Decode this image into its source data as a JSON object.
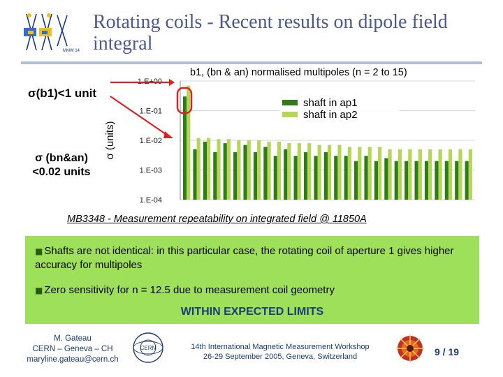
{
  "slide": {
    "title": "Rotating coils - Recent results on dipole field integral",
    "logo_text": "MMW 14",
    "sigma_b1_label": "σ(b1)<1 unit",
    "sigma_bn_line1": "σ (bn&an)",
    "sigma_bn_line2": "<0.02 units",
    "caption": "MB3348 - Measurement repeatability on integrated field @ 11850A",
    "bullets": [
      "Shafts are not identical: in this particular case, the rotating coil of aperture 1 gives higher accuracy for multipoles",
      "Zero sensitivity for n = 12.5 due to measurement coil geometry"
    ],
    "conclusion": "WITHIN EXPECTED LIMITS",
    "footer": {
      "author_name": "M. Gateau",
      "author_org": "CERN – Geneva – CH",
      "author_email": "maryline.gateau@cern.ch",
      "workshop_line1": "14th International Magnetic Measurement Workshop",
      "workshop_line2": "26-29 September 2005, Geneva, Switzerland",
      "page": "9 / 19",
      "cern_logo_text": "CERN"
    }
  },
  "colors": {
    "title": "#4a5a8c",
    "ap1": "#2e7d1a",
    "ap2": "#b6d65a",
    "highlight": "#e02020",
    "greenbox": "#9ee05a",
    "footer_text": "#1a3c7a"
  },
  "chart_data": {
    "type": "bar",
    "title": "b1, (bn & an) normalised multipoles (n = 2 to 15)",
    "ylabel": "σ (units)",
    "yscale": "log",
    "ylim": [
      0.0001,
      1
    ],
    "ytick_labels": [
      "1.E+00",
      "1.E-01",
      "1.E-02",
      "1.E-03",
      "1.E-04"
    ],
    "grid": true,
    "legend": "top-right",
    "series": [
      {
        "name": "shaft in ap1",
        "values": [
          0.3,
          0.005,
          0.009,
          0.004,
          0.008,
          0.004,
          0.007,
          0.004,
          0.006,
          0.003,
          0.005,
          0.003,
          0.004,
          0.003,
          0.004,
          0.003,
          0.003,
          0.002,
          0.003,
          0.002,
          0.0025,
          0.002,
          0.002,
          0.002,
          0.002,
          0.002,
          0.002,
          0.002,
          0.002
        ]
      },
      {
        "name": "shaft in ap2",
        "values": [
          0.7,
          0.012,
          0.012,
          0.011,
          0.011,
          0.01,
          0.01,
          0.01,
          0.009,
          0.009,
          0.008,
          0.008,
          0.008,
          0.007,
          0.007,
          0.007,
          0.006,
          0.006,
          0.006,
          0.006,
          0.005,
          0.005,
          0.005,
          0.005,
          0.005,
          0.005,
          0.005,
          0.005,
          0.005
        ]
      }
    ]
  }
}
